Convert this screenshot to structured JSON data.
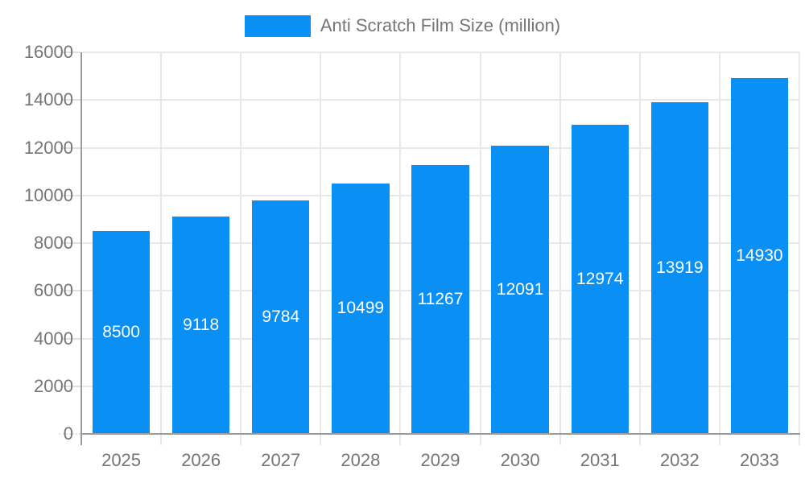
{
  "legend": {
    "label": "Anti Scratch Film Size (million)",
    "position": "top"
  },
  "chart_data": {
    "type": "bar",
    "title": "Anti Scratch Film Size (million)",
    "series_name": "Anti Scratch Film Size (million)",
    "categories": [
      "2025",
      "2026",
      "2027",
      "2028",
      "2029",
      "2030",
      "2031",
      "2032",
      "2033"
    ],
    "values": [
      8500,
      9118,
      9784,
      10499,
      11267,
      12091,
      12974,
      13919,
      14930
    ],
    "value_labels": [
      "8500",
      "9118",
      "9784",
      "10499",
      "11267",
      "12091",
      "12974",
      "13919",
      "14930"
    ],
    "xlabel": "",
    "ylabel": "",
    "ylim": [
      0,
      16000
    ],
    "yticks": [
      0,
      2000,
      4000,
      6000,
      8000,
      10000,
      12000,
      14000,
      16000
    ],
    "grid": true,
    "legend_position": "top",
    "bar_labels_position": "inside-center"
  },
  "colors": {
    "bar": "#0A90F5",
    "bar_label": "#FFFFFF",
    "grid": "#E8E8E8",
    "tick": "#E0E0E0",
    "axis": "#9B9B9B",
    "text": "#757575",
    "background": "#FFFFFF"
  }
}
